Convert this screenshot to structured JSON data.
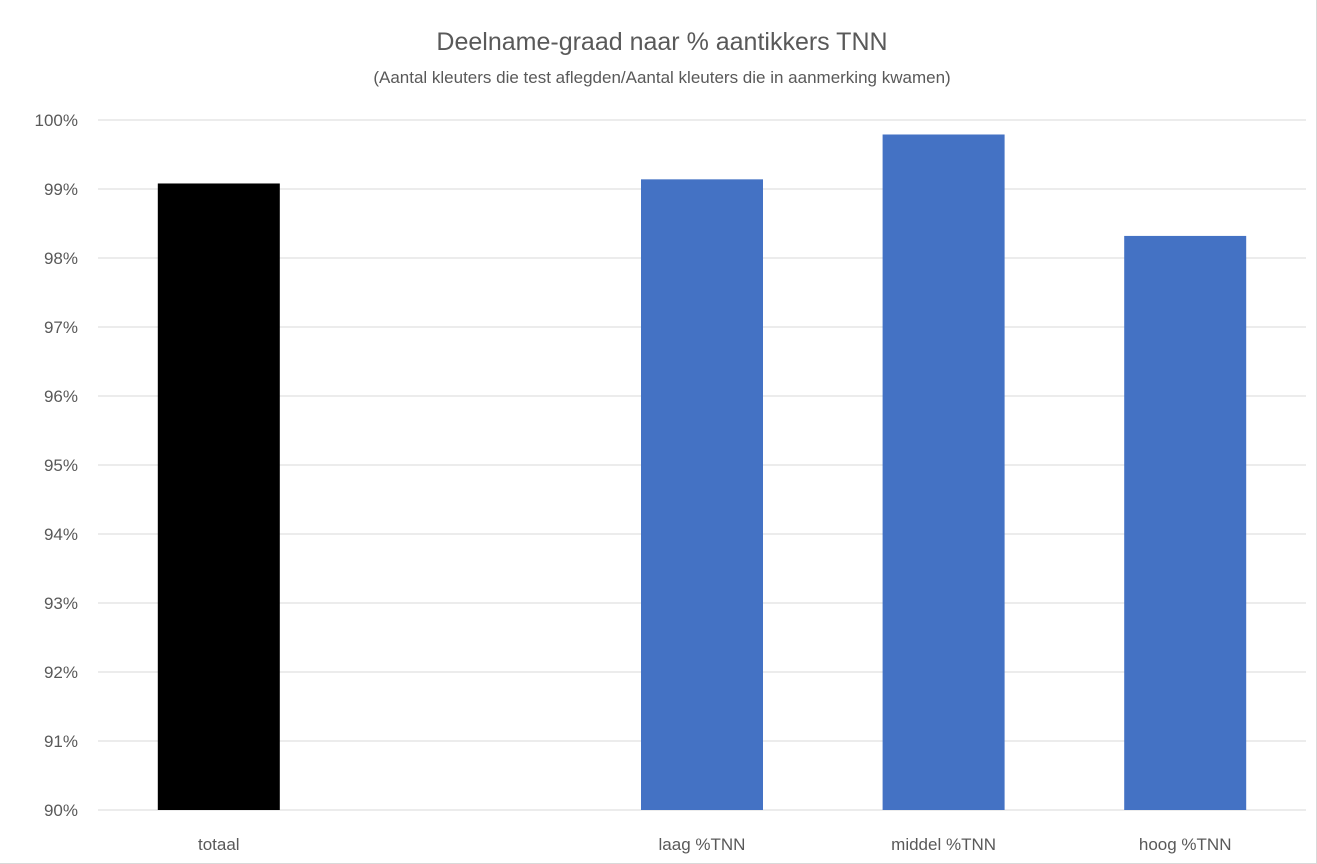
{
  "chart_data": {
    "type": "bar",
    "title": "Deelname-graad naar % aantikkers TNN",
    "subtitle": "(Aantal kleuters die test aflegden/Aantal kleuters die in aanmerking kwamen)",
    "xlabel": "",
    "ylabel": "",
    "categories": [
      "totaal",
      "",
      "laag %TNN",
      "middel %TNN",
      "hoog %TNN"
    ],
    "values": [
      99.08,
      null,
      99.14,
      99.79,
      98.32
    ],
    "bar_colors": [
      "#000000",
      null,
      "#4472c4",
      "#4472c4",
      "#4472c4"
    ],
    "ylim": [
      90,
      100
    ],
    "y_ticks": [
      "90%",
      "91%",
      "92%",
      "93%",
      "94%",
      "95%",
      "96%",
      "97%",
      "98%",
      "99%",
      "100%"
    ],
    "y_tick_values": [
      90,
      91,
      92,
      93,
      94,
      95,
      96,
      97,
      98,
      99,
      100
    ],
    "grid": true,
    "legend": "none"
  }
}
